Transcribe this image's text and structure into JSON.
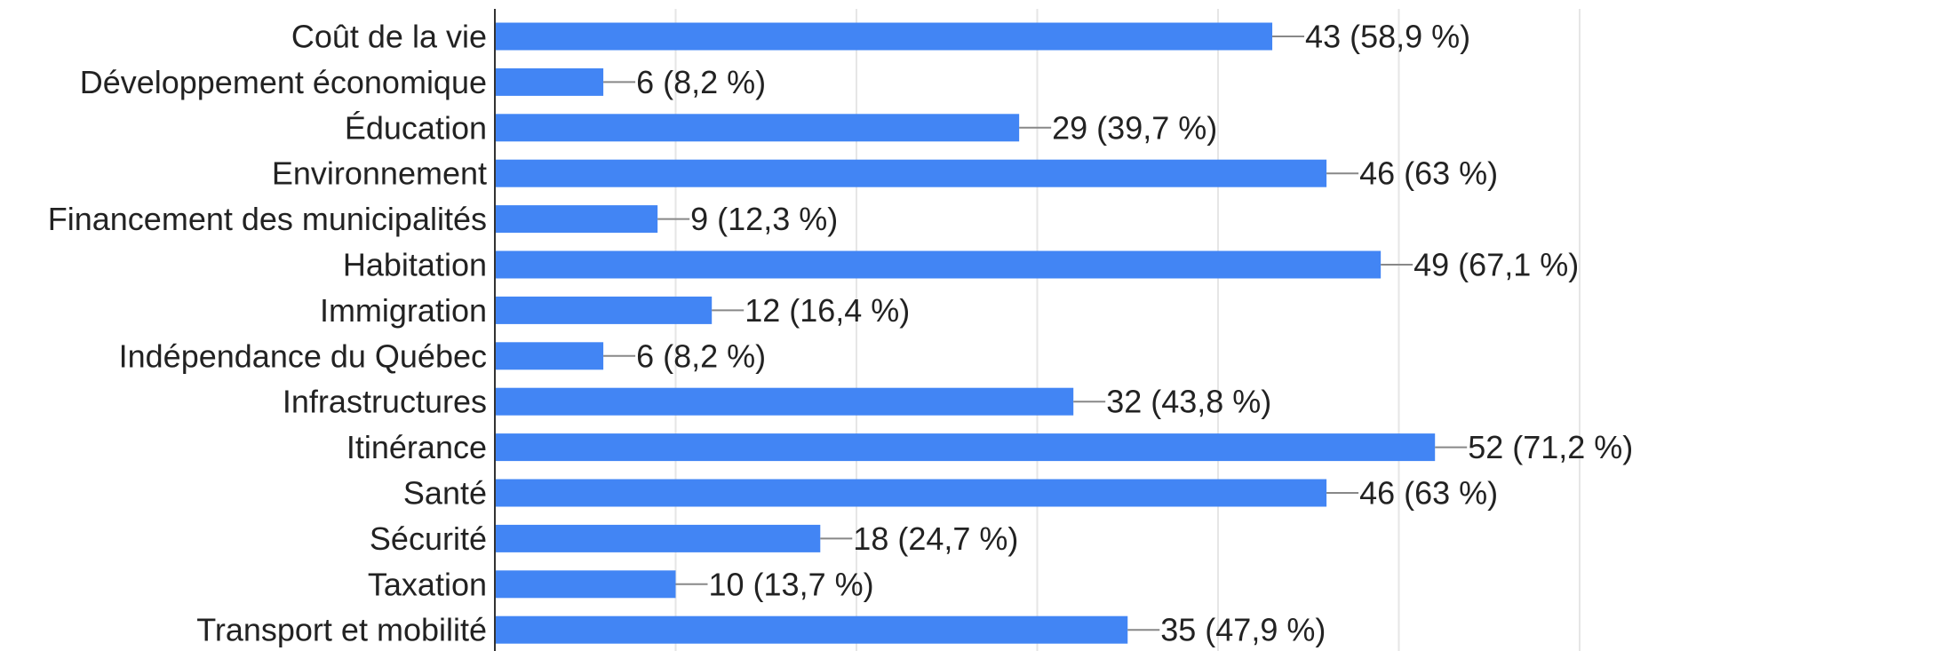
{
  "chart_data": {
    "type": "bar",
    "orientation": "horizontal",
    "categories": [
      "Coût de la vie",
      "Développement économique",
      "Éducation",
      "Environnement",
      "Financement des municipalités",
      "Habitation",
      "Immigration",
      "Indépendance du Québec",
      "Infrastructures",
      "Itinérance",
      "Santé",
      "Sécurité",
      "Taxation",
      "Transport et mobilité"
    ],
    "values": [
      43,
      6,
      29,
      46,
      9,
      49,
      12,
      6,
      32,
      52,
      46,
      18,
      10,
      35
    ],
    "data_labels": [
      "43 (58,9 %)",
      "6 (8,2 %)",
      "29 (39,7 %)",
      "46 (63 %)",
      "9 (12,3 %)",
      "49 (67,1 %)",
      "12 (16,4 %)",
      "6 (8,2 %)",
      "32 (43,8 %)",
      "52 (71,2 %)",
      "46 (63 %)",
      "18 (24,7 %)",
      "10 (13,7 %)",
      "35 (47,9 %)"
    ],
    "xlim": [
      0,
      60
    ],
    "grid": true,
    "bar_color": "#4285f4"
  }
}
